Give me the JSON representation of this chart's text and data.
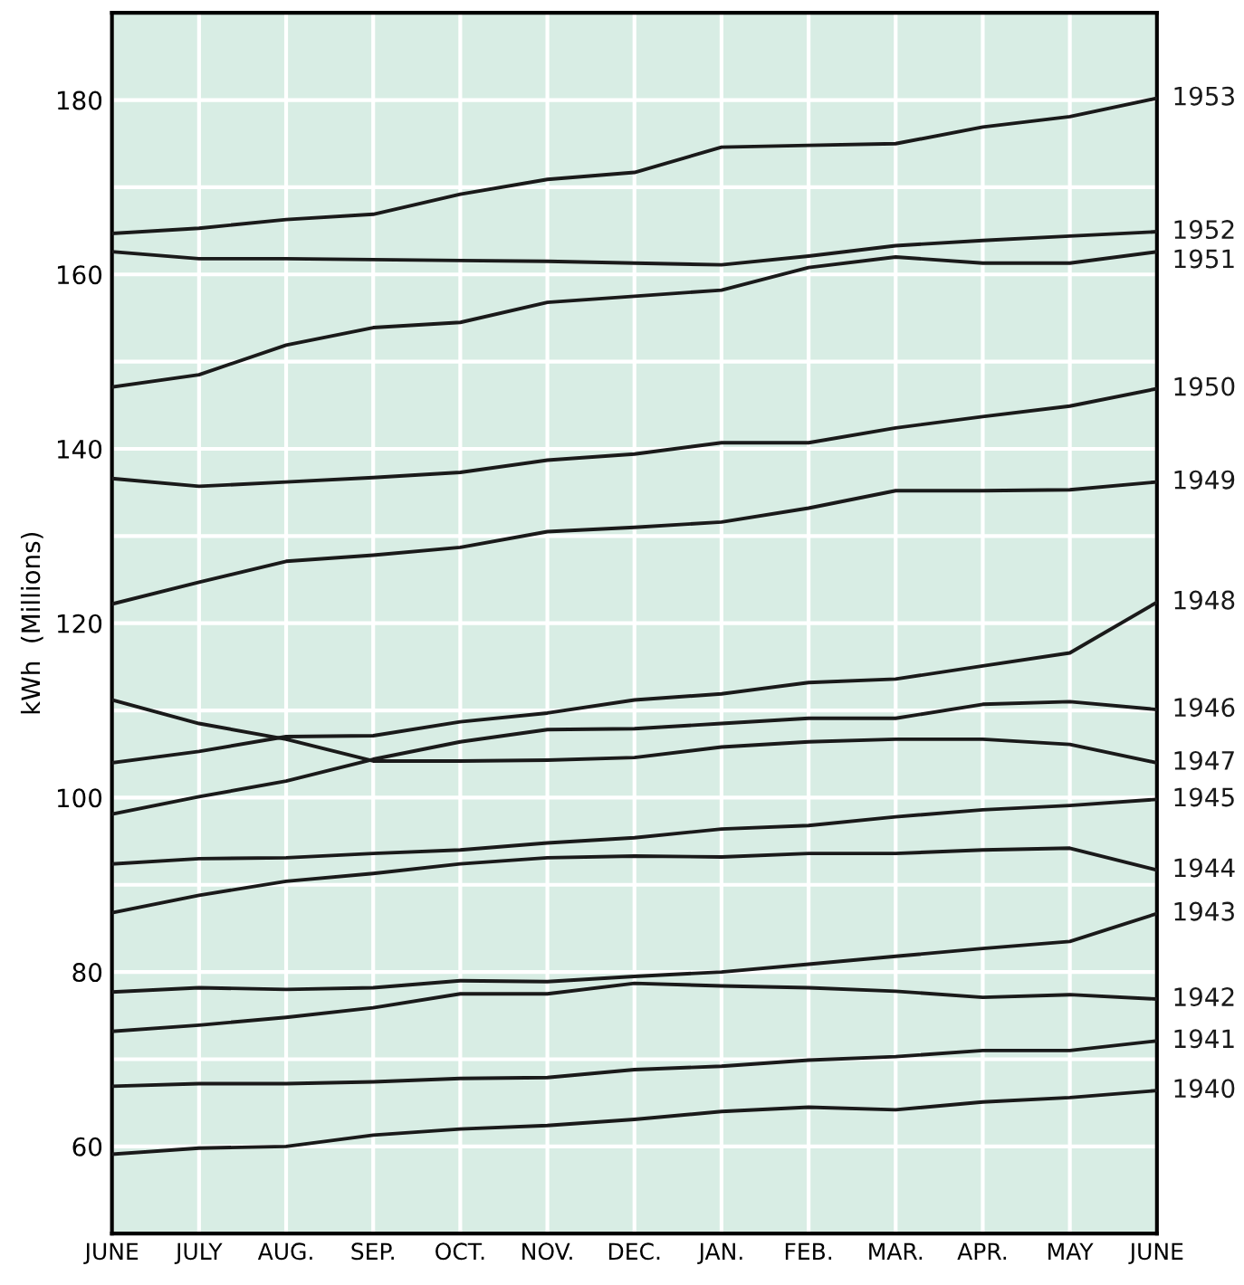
{
  "chart_data": {
    "type": "line",
    "ylabel": "kWh  (Millions)",
    "categories": [
      "JUNE",
      "JULY",
      "AUG.",
      "SEP.",
      "OCT.",
      "NOV.",
      "DEC.",
      "JAN.",
      "FEB.",
      "MAR.",
      "APR.",
      "MAY",
      "JUNE"
    ],
    "series": [
      {
        "name": "1953",
        "color": "#1a1a1a",
        "values": [
          164.7,
          165.3,
          166.3,
          166.9,
          169.2,
          170.9,
          171.7,
          174.6,
          174.8,
          175.0,
          176.9,
          178.1,
          180.2
        ]
      },
      {
        "name": "1952",
        "color": "#1a1a1a",
        "values": [
          162.6,
          161.8,
          161.8,
          161.7,
          161.6,
          161.5,
          161.3,
          161.1,
          162.1,
          163.3,
          163.9,
          164.4,
          164.9
        ]
      },
      {
        "name": "1951",
        "color": "#1a1a1a",
        "values": [
          147.1,
          148.5,
          151.9,
          153.9,
          154.5,
          156.8,
          157.5,
          158.2,
          160.8,
          162.0,
          161.3,
          161.3,
          162.6
        ]
      },
      {
        "name": "1950",
        "color": "#1a1a1a",
        "values": [
          136.6,
          135.7,
          136.2,
          136.7,
          137.3,
          138.7,
          139.4,
          140.7,
          140.7,
          142.4,
          143.7,
          144.9,
          146.9
        ]
      },
      {
        "name": "1949",
        "color": "#1a1a1a",
        "values": [
          122.2,
          124.7,
          127.1,
          127.8,
          128.7,
          130.5,
          131.0,
          131.6,
          133.2,
          135.2,
          135.2,
          135.3,
          136.2
        ]
      },
      {
        "name": "1948",
        "color": "#1a1a1a",
        "values": [
          104.0,
          105.3,
          107.0,
          107.1,
          108.7,
          109.7,
          111.2,
          111.9,
          113.2,
          113.6,
          115.1,
          116.6,
          122.4
        ]
      },
      {
        "name": "1946",
        "color": "#1a1a1a",
        "values": [
          98.1,
          100.1,
          101.9,
          104.4,
          106.4,
          107.8,
          107.9,
          108.5,
          109.1,
          109.1,
          110.7,
          111.0,
          110.1
        ]
      },
      {
        "name": "1947",
        "color": "#1a1a1a",
        "values": [
          111.2,
          108.5,
          106.7,
          104.2,
          104.2,
          104.3,
          104.6,
          105.8,
          106.4,
          106.7,
          106.7,
          106.1,
          104.0
        ]
      },
      {
        "name": "1945",
        "color": "#1a1a1a",
        "values": [
          92.4,
          93.0,
          93.1,
          93.6,
          94.0,
          94.8,
          95.4,
          96.4,
          96.8,
          97.8,
          98.6,
          99.1,
          99.8
        ]
      },
      {
        "name": "1944",
        "color": "#1a1a1a",
        "values": [
          86.8,
          88.8,
          90.4,
          91.3,
          92.4,
          93.1,
          93.3,
          93.2,
          93.6,
          93.6,
          94.0,
          94.2,
          91.7
        ]
      },
      {
        "name": "1943",
        "color": "#1a1a1a",
        "values": [
          77.7,
          78.2,
          78.0,
          78.2,
          79.0,
          78.9,
          79.5,
          80.0,
          80.9,
          81.8,
          82.7,
          83.5,
          86.7
        ]
      },
      {
        "name": "1942",
        "color": "#1a1a1a",
        "values": [
          73.2,
          73.9,
          74.8,
          75.9,
          77.5,
          77.5,
          78.7,
          78.4,
          78.2,
          77.8,
          77.1,
          77.4,
          76.9
        ]
      },
      {
        "name": "1941",
        "color": "#1a1a1a",
        "values": [
          66.9,
          67.2,
          67.2,
          67.4,
          67.8,
          67.9,
          68.8,
          69.2,
          69.9,
          70.3,
          71.0,
          71.0,
          72.1
        ]
      },
      {
        "name": "1940",
        "color": "#1a1a1a",
        "values": [
          59.1,
          59.8,
          60.0,
          61.3,
          62.0,
          62.4,
          63.1,
          64.0,
          64.5,
          64.2,
          65.1,
          65.6,
          66.4
        ]
      }
    ],
    "ylim": [
      50,
      190
    ],
    "yticks": [
      60,
      {
        "value": 70,
        "label": null
      },
      80,
      {
        "value": 90,
        "label": null
      },
      100,
      {
        "value": 110,
        "label": null
      },
      120,
      {
        "value": 130,
        "label": null
      },
      140,
      {
        "value": 150,
        "label": null
      },
      160,
      {
        "value": 170,
        "label": null
      },
      180
    ],
    "grid": true,
    "legend": false,
    "marker": "none",
    "line_style": "solid"
  }
}
